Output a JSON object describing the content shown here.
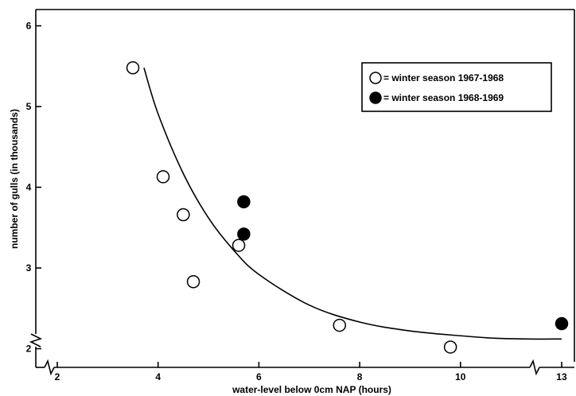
{
  "chart_data": {
    "type": "scatter",
    "title": "",
    "xlabel": "water-level below 0cm NAP (hours)",
    "ylabel": "number of gulls (in thousands)",
    "xlim": [
      1.6,
      13.2
    ],
    "ylim": [
      1.9,
      6.1
    ],
    "x_axis_break": "between 10 and 13",
    "x_ticks": [
      2,
      4,
      6,
      8,
      10,
      13
    ],
    "y_ticks": [
      2,
      3,
      4,
      5,
      6
    ],
    "grid": false,
    "legend_position": "top-right",
    "series": [
      {
        "name": "= winter season 1967-1968",
        "marker": "open-circle",
        "points": [
          {
            "x": 3.5,
            "y": 5.48
          },
          {
            "x": 4.1,
            "y": 4.13
          },
          {
            "x": 4.5,
            "y": 3.66
          },
          {
            "x": 4.7,
            "y": 2.83
          },
          {
            "x": 5.6,
            "y": 3.28
          },
          {
            "x": 7.6,
            "y": 2.29
          },
          {
            "x": 9.8,
            "y": 2.02
          }
        ]
      },
      {
        "name": "= winter season 1968-1969",
        "marker": "filled-circle",
        "points": [
          {
            "x": 5.7,
            "y": 3.82
          },
          {
            "x": 5.7,
            "y": 3.42
          },
          {
            "x": 13,
            "y": 2.31
          }
        ]
      }
    ],
    "fitted_curve": {
      "description": "decaying curve",
      "points": [
        {
          "x": 3.72,
          "y": 5.48
        },
        {
          "x": 4.0,
          "y": 4.91
        },
        {
          "x": 4.5,
          "y": 4.17
        },
        {
          "x": 5.0,
          "y": 3.62
        },
        {
          "x": 5.5,
          "y": 3.22
        },
        {
          "x": 6.0,
          "y": 2.92
        },
        {
          "x": 7.0,
          "y": 2.54
        },
        {
          "x": 8.0,
          "y": 2.33
        },
        {
          "x": 9.0,
          "y": 2.22
        },
        {
          "x": 10.0,
          "y": 2.16
        },
        {
          "x": 11.0,
          "y": 2.13
        },
        {
          "x": 12.0,
          "y": 2.12
        },
        {
          "x": 13.0,
          "y": 2.12
        }
      ]
    }
  }
}
